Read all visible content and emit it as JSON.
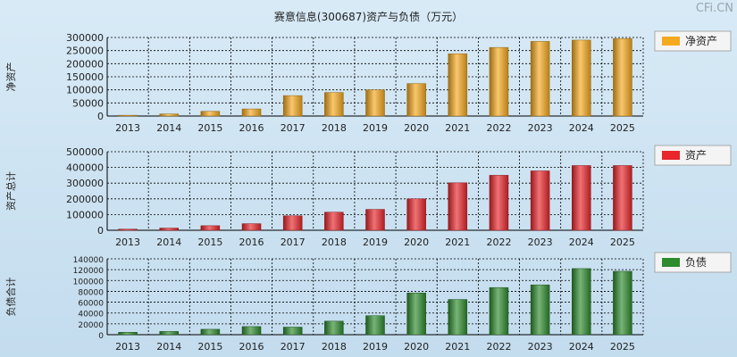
{
  "title": "赛意信息(300687)资产与负债（万元）",
  "watermark": "CFi.CN",
  "chart_data": [
    {
      "type": "bar",
      "id": "net-assets",
      "ylabel": "净资产",
      "legend": "净资产",
      "color": "#f5a91e",
      "categories": [
        "2013",
        "2014",
        "2015",
        "2016",
        "2017",
        "2018",
        "2019",
        "2020",
        "2021",
        "2022",
        "2023",
        "2024",
        "2025"
      ],
      "values": [
        3000,
        8000,
        18000,
        27000,
        78000,
        90000,
        100000,
        124000,
        238000,
        262000,
        285000,
        290000,
        296000
      ],
      "ylim": [
        0,
        300000
      ],
      "yticks": [
        "0",
        "50000",
        "100000",
        "150000",
        "200000",
        "250000",
        "300000"
      ],
      "grid": true
    },
    {
      "type": "bar",
      "id": "total-assets",
      "ylabel": "资产总计",
      "legend": "资产",
      "color": "#e8262b",
      "categories": [
        "2013",
        "2014",
        "2015",
        "2016",
        "2017",
        "2018",
        "2019",
        "2020",
        "2021",
        "2022",
        "2023",
        "2024",
        "2025"
      ],
      "values": [
        7000,
        14000,
        29000,
        42000,
        92000,
        115000,
        133000,
        200000,
        302000,
        350000,
        378000,
        412000,
        412000
      ],
      "ylim": [
        0,
        500000
      ],
      "yticks": [
        "0",
        "100000",
        "200000",
        "300000",
        "400000",
        "500000"
      ],
      "grid": true
    },
    {
      "type": "bar",
      "id": "total-liabilities",
      "ylabel": "负债合计",
      "legend": "负债",
      "color": "#2e8b2e",
      "categories": [
        "2013",
        "2014",
        "2015",
        "2016",
        "2017",
        "2018",
        "2019",
        "2020",
        "2021",
        "2022",
        "2023",
        "2024",
        "2025"
      ],
      "values": [
        4500,
        6000,
        10000,
        15000,
        14000,
        25000,
        35000,
        77000,
        65000,
        87000,
        92000,
        122000,
        117000
      ],
      "ylim": [
        0,
        140000
      ],
      "yticks": [
        "0",
        "20000",
        "40000",
        "60000",
        "80000",
        "100000",
        "120000",
        "140000"
      ],
      "grid": true
    }
  ]
}
